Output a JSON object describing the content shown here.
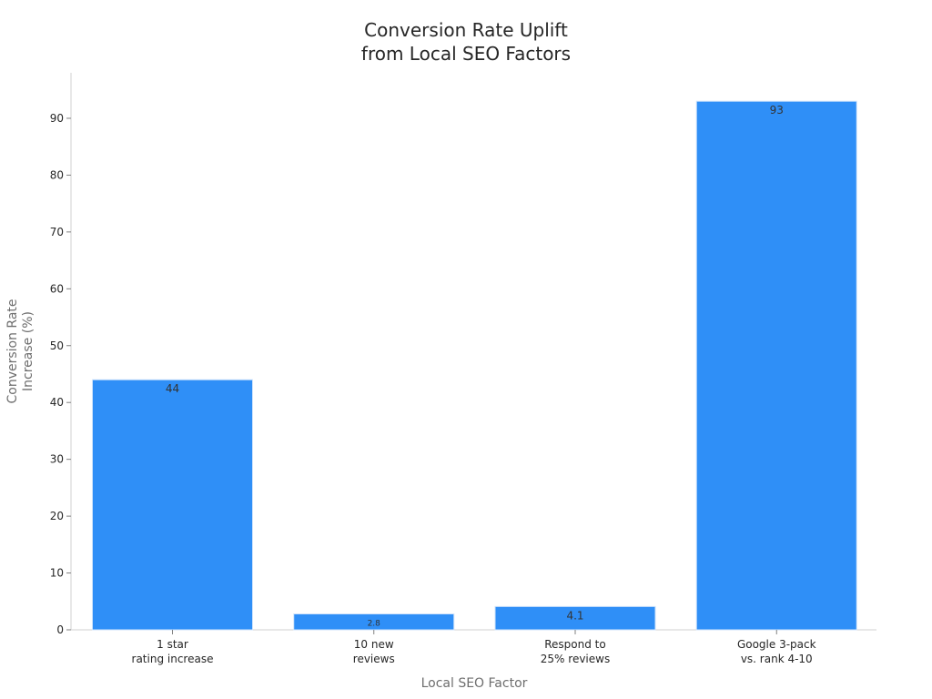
{
  "chart_data": {
    "type": "bar",
    "title": [
      "Conversion Rate Uplift",
      "from Local SEO Factors"
    ],
    "xlabel": "Local SEO Factor",
    "ylabel": [
      "Conversion Rate",
      "Increase (%)"
    ],
    "categories": [
      [
        "1 star",
        "rating increase"
      ],
      [
        "10 new",
        "reviews"
      ],
      [
        "Respond to",
        "25% reviews"
      ],
      [
        "Google 3-pack",
        "vs. rank 4-10"
      ]
    ],
    "values": [
      44,
      2.8,
      4.1,
      93
    ],
    "data_labels": [
      "44",
      "2.8",
      "4.1",
      "93"
    ],
    "ylim": [
      0,
      98
    ],
    "yticks": [
      0,
      10,
      20,
      30,
      40,
      50,
      60,
      70,
      80,
      90
    ],
    "grid": false,
    "bar_color": "#2f8ff7",
    "bar_edge_color": "#cfe3fb"
  }
}
